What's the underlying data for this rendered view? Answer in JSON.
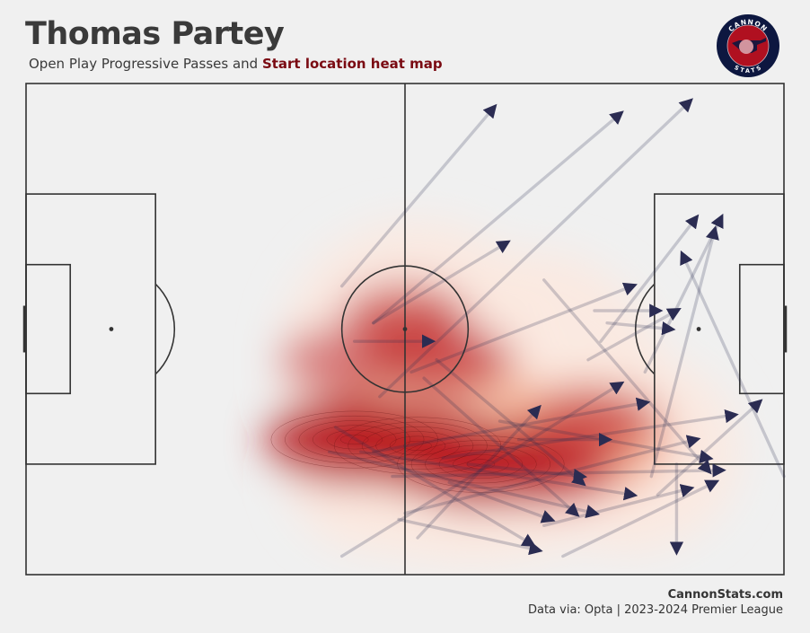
{
  "header": {
    "title": "Thomas Partey",
    "subtitle_prefix": "Open Play Progressive Passes and ",
    "subtitle_highlight": "Start location heat map"
  },
  "logo": {
    "top_text": "CANNON",
    "bottom_text": "STATS",
    "ring_color": "#0d1740",
    "inner_color": "#b01020"
  },
  "footer": {
    "site": "CannonStats.com",
    "source": "Data via: Opta | 2023-2024 Premier League"
  },
  "colors": {
    "background": "#f0f0f0",
    "lines": "#333333",
    "arrows": "#2b2c52",
    "heat_high": "#b8141e",
    "heat_low": "#fbe9e0"
  },
  "chart_data": {
    "type": "scatter",
    "pitch": {
      "length": 120,
      "width": 80,
      "attacking_direction": "left-to-right"
    },
    "heatmap_hotspots": [
      {
        "x": 52,
        "y": 58,
        "intensity": 1.0
      },
      {
        "x": 62,
        "y": 59,
        "intensity": 0.85
      },
      {
        "x": 72,
        "y": 62,
        "intensity": 0.95
      },
      {
        "x": 82,
        "y": 63,
        "intensity": 0.6
      },
      {
        "x": 60,
        "y": 38,
        "intensity": 0.35
      },
      {
        "x": 66,
        "y": 45,
        "intensity": 0.5
      },
      {
        "x": 90,
        "y": 55,
        "intensity": 0.35
      },
      {
        "x": 50,
        "y": 45,
        "intensity": 0.3
      }
    ],
    "passes": [
      {
        "start": [
          50,
          33
        ],
        "end": [
          74,
          4
        ]
      },
      {
        "start": [
          55,
          39
        ],
        "end": [
          94,
          5
        ]
      },
      {
        "start": [
          56,
          51
        ],
        "end": [
          105,
          3
        ]
      },
      {
        "start": [
          55,
          39
        ],
        "end": [
          76,
          26
        ]
      },
      {
        "start": [
          52,
          42
        ],
        "end": [
          64,
          42
        ]
      },
      {
        "start": [
          61,
          47
        ],
        "end": [
          96,
          33
        ]
      },
      {
        "start": [
          90,
          37
        ],
        "end": [
          100,
          37
        ]
      },
      {
        "start": [
          89,
          45
        ],
        "end": [
          103,
          37
        ]
      },
      {
        "start": [
          92,
          39
        ],
        "end": [
          102,
          40
        ]
      },
      {
        "start": [
          91,
          42
        ],
        "end": [
          106,
          22
        ]
      },
      {
        "start": [
          98,
          47
        ],
        "end": [
          110,
          22
        ]
      },
      {
        "start": [
          99,
          64
        ],
        "end": [
          109,
          24
        ]
      },
      {
        "start": [
          120,
          64
        ],
        "end": [
          104,
          28
        ]
      },
      {
        "start": [
          82,
          32
        ],
        "end": [
          108,
          63
        ]
      },
      {
        "start": [
          65,
          45
        ],
        "end": [
          88,
          65
        ]
      },
      {
        "start": [
          49,
          56
        ],
        "end": [
          80,
          75
        ]
      },
      {
        "start": [
          55,
          60
        ],
        "end": [
          98,
          52
        ]
      },
      {
        "start": [
          60,
          70
        ],
        "end": [
          106,
          58
        ]
      },
      {
        "start": [
          50,
          77
        ],
        "end": [
          94,
          49
        ]
      },
      {
        "start": [
          66,
          61
        ],
        "end": [
          112,
          54
        ]
      },
      {
        "start": [
          75,
          55
        ],
        "end": [
          108,
          61
        ]
      },
      {
        "start": [
          53,
          60
        ],
        "end": [
          96,
          67
        ]
      },
      {
        "start": [
          58,
          64
        ],
        "end": [
          110,
          63
        ]
      },
      {
        "start": [
          85,
          77
        ],
        "end": [
          109,
          65
        ]
      },
      {
        "start": [
          100,
          67
        ],
        "end": [
          116,
          52
        ]
      },
      {
        "start": [
          48,
          60
        ],
        "end": [
          90,
          70
        ]
      },
      {
        "start": [
          67,
          65
        ],
        "end": [
          83,
          71
        ]
      },
      {
        "start": [
          59,
          71
        ],
        "end": [
          81,
          76
        ]
      },
      {
        "start": [
          103,
          62
        ],
        "end": [
          103,
          76
        ]
      },
      {
        "start": [
          78,
          58
        ],
        "end": [
          92,
          58
        ]
      },
      {
        "start": [
          63,
          48
        ],
        "end": [
          87,
          70
        ]
      },
      {
        "start": [
          70,
          62
        ],
        "end": [
          88,
          64
        ]
      },
      {
        "start": [
          82,
          72
        ],
        "end": [
          105,
          66
        ]
      },
      {
        "start": [
          62,
          74
        ],
        "end": [
          81,
          53
        ]
      }
    ],
    "title": "Thomas Partey",
    "subtitle": "Open Play Progressive Passes and Start location heat map"
  }
}
